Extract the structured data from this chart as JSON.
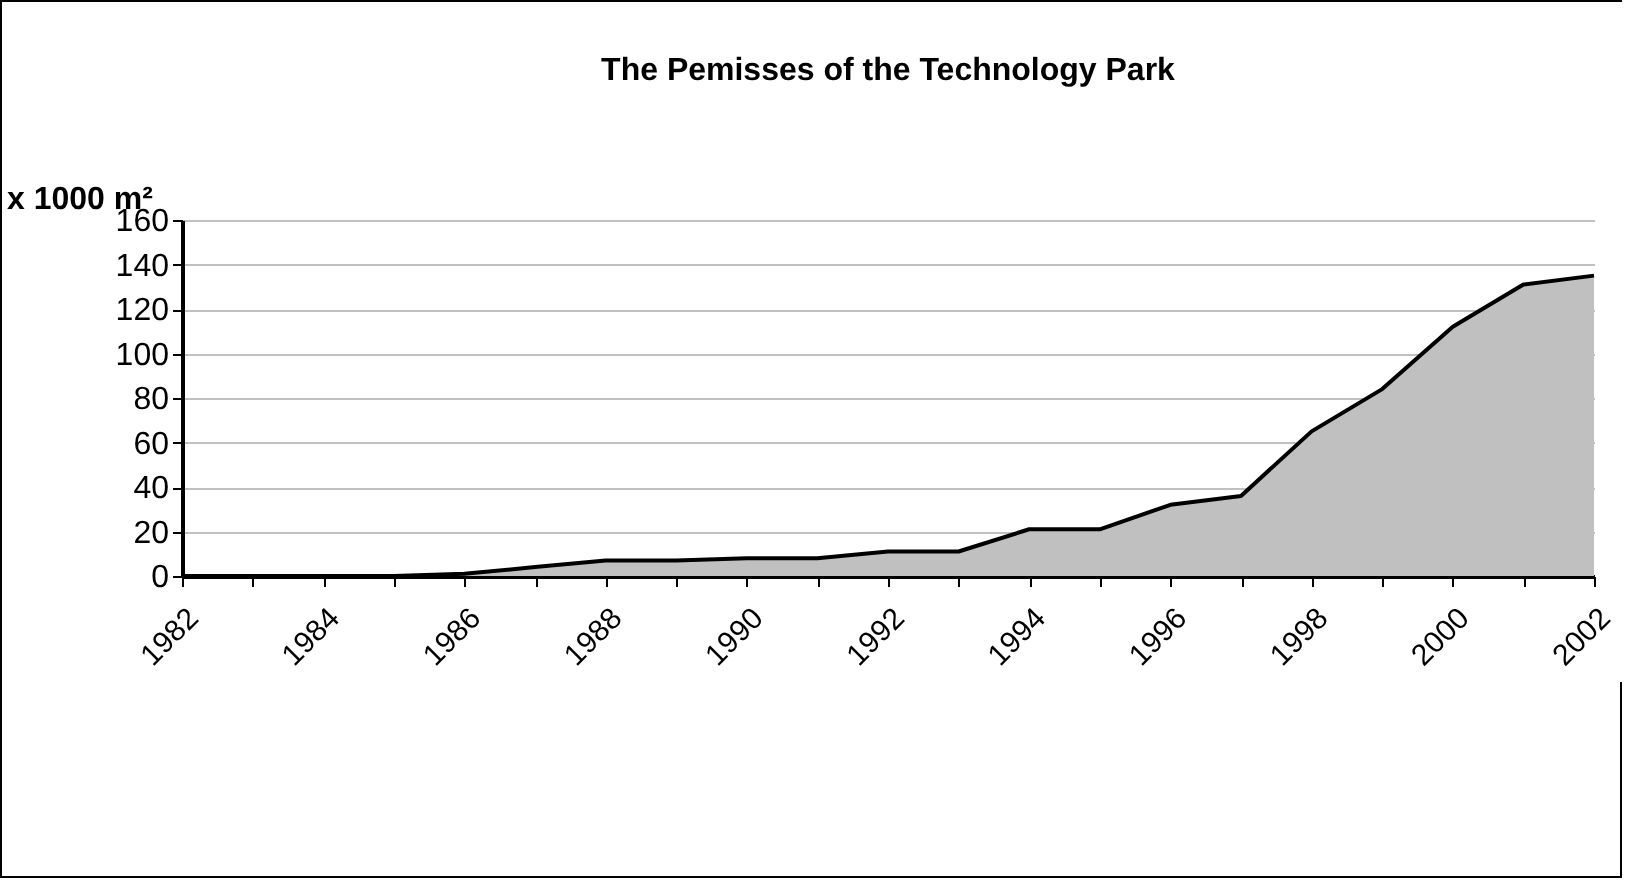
{
  "chart_data": {
    "type": "area",
    "title": "The Pemisses of the Technology Park",
    "ylabel": "x 1000 m²",
    "categories": [
      "1982",
      null,
      "1984",
      null,
      "1986",
      null,
      "1988",
      null,
      "1990",
      null,
      "1992",
      null,
      "1994",
      null,
      "1996",
      null,
      "1998",
      null,
      "2000",
      null,
      "2002"
    ],
    "series": [
      {
        "color": "#c0c0c0",
        "values": [
          0,
          0,
          0,
          0,
          1,
          4,
          7,
          7,
          8,
          8,
          11,
          11,
          21,
          21,
          32,
          36,
          65,
          84,
          112,
          131,
          135
        ]
      }
    ],
    "ylim": [
      0,
      160
    ],
    "yticks": [
      0,
      20,
      40,
      60,
      80,
      100,
      120,
      140,
      160
    ],
    "grid": "y"
  }
}
